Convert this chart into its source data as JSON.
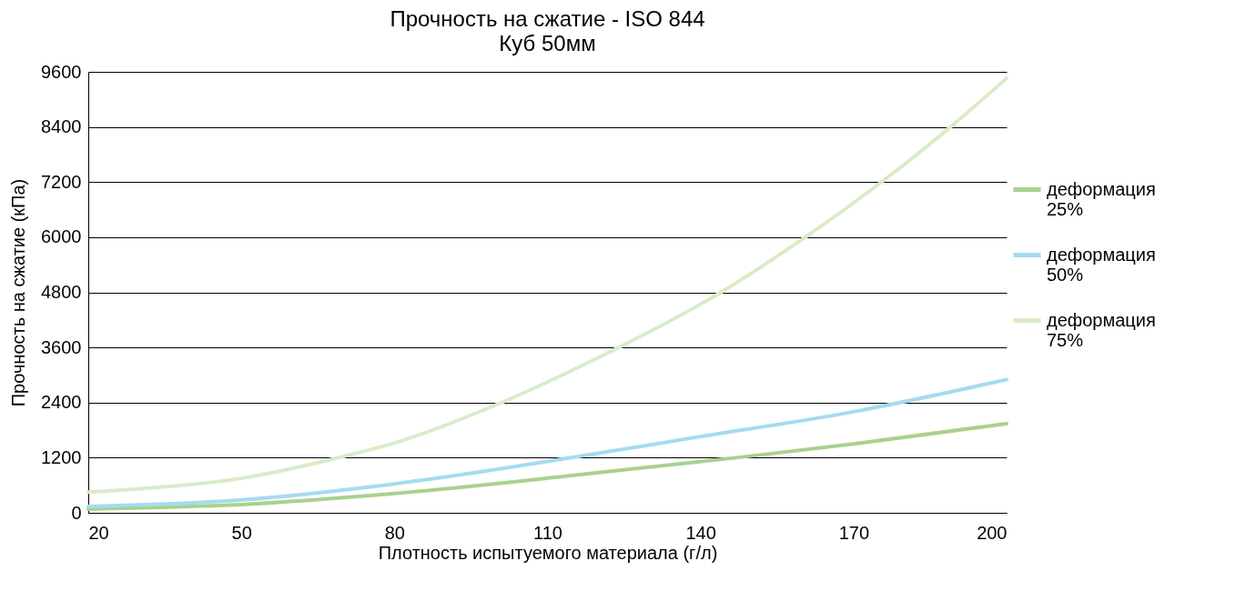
{
  "chart_data": {
    "type": "line",
    "title": "Прочность на сжатие - ISO 844",
    "subtitle": "Куб 50мм",
    "xlabel": "Плотность испытуемого материала (г/л)",
    "ylabel": "Прочность на сжатие (кПа)",
    "series": [
      {
        "name": "деформация 25%",
        "color": "#a9d18e",
        "x": [
          20,
          50,
          80,
          118,
          147,
          170,
          200
        ],
        "values": [
          80,
          180,
          420,
          850,
          1200,
          1500,
          1940
        ]
      },
      {
        "name": "деформация 50%",
        "color": "#a5dbef",
        "x": [
          20,
          50,
          80,
          118,
          140,
          170,
          200
        ],
        "values": [
          140,
          280,
          630,
          1260,
          1660,
          2200,
          2900
        ]
      },
      {
        "name": "деформация 75%",
        "color": "#d9ecc9",
        "x": [
          20,
          31,
          50,
          69,
          80,
          101,
          118,
          124,
          144,
          160,
          175,
          189,
          200
        ],
        "values": [
          450,
          530,
          750,
          1200,
          1520,
          2400,
          3270,
          3600,
          4800,
          5960,
          7160,
          8400,
          9460
        ]
      }
    ],
    "xlim": [
      20,
      200
    ],
    "xticks": [
      20,
      50,
      80,
      110,
      140,
      170,
      200
    ],
    "ylim": [
      0,
      9600
    ],
    "yticks": [
      0,
      1200,
      2400,
      3600,
      4800,
      6000,
      7200,
      8400,
      9600
    ],
    "grid": "y",
    "legend": "right",
    "marker": "none",
    "line_style": "solid"
  }
}
